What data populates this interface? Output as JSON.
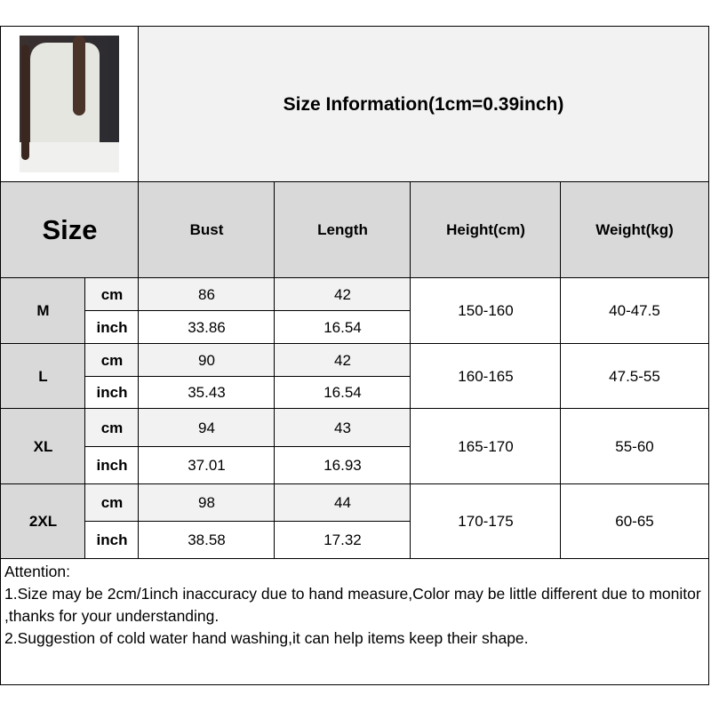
{
  "title": "Size Information(1cm=0.39inch)",
  "header": {
    "size": "Size",
    "bust": "Bust",
    "length": "Length",
    "height": "Height(cm)",
    "weight": "Weight(kg)"
  },
  "rows": [
    {
      "size": "M",
      "cm": {
        "unit": "cm",
        "bust": "86",
        "length": "42"
      },
      "inch": {
        "unit": "inch",
        "bust": "33.86",
        "length": "16.54"
      },
      "height": "150-160",
      "weight": "40-47.5"
    },
    {
      "size": "L",
      "cm": {
        "unit": "cm",
        "bust": "90",
        "length": "42"
      },
      "inch": {
        "unit": "inch",
        "bust": "35.43",
        "length": "16.54"
      },
      "height": "160-165",
      "weight": "47.5-55"
    },
    {
      "size": "XL",
      "cm": {
        "unit": "cm",
        "bust": "94",
        "length": "43"
      },
      "inch": {
        "unit": "inch",
        "bust": "37.01",
        "length": "16.93"
      },
      "height": "165-170",
      "weight": "55-60"
    },
    {
      "size": "2XL",
      "cm": {
        "unit": "cm",
        "bust": "98",
        "length": "44"
      },
      "inch": {
        "unit": "inch",
        "bust": "38.58",
        "length": "17.32"
      },
      "height": "170-175",
      "weight": "60-65"
    }
  ],
  "attention": {
    "heading": "Attention:",
    "line1": "1.Size may be 2cm/1inch inaccuracy due to hand measure,Color may be little different due to monitor ,thanks for your understanding.",
    "line2": "2.Suggestion of cold water hand washing,it can help items keep their shape."
  }
}
